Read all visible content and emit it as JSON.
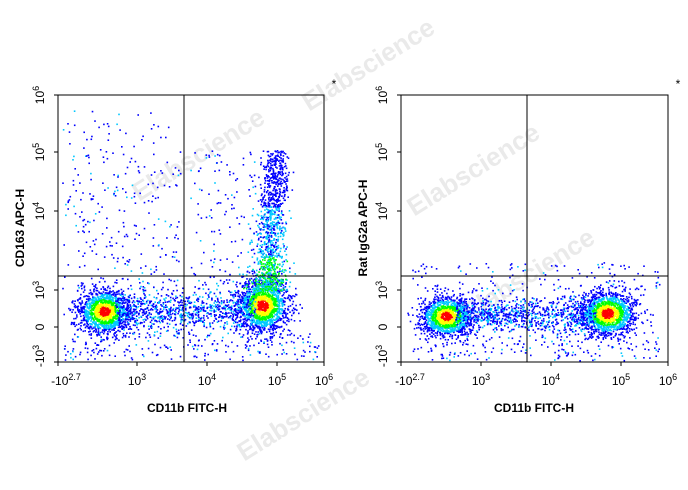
{
  "watermark": "Elabscience",
  "registered_mark": "®",
  "chart_data": [
    {
      "type": "scatter",
      "style": "density-dot-plot (pseudocolor: blue → cyan → green → yellow → red)",
      "xlabel": "CD11b FITC-H",
      "ylabel": "CD163 APC-H",
      "x_scale": "biexponential",
      "y_scale": "biexponential",
      "x_ticks": [
        "-10^2.7",
        "10^3",
        "10^4",
        "10^5",
        "10^6"
      ],
      "y_ticks": [
        "-10^3",
        "0",
        "10^3",
        "10^4",
        "10^5",
        "10^6"
      ],
      "gate_x": 4000,
      "gate_y": 2000,
      "corner_mark": "*",
      "populations": [
        {
          "name": "CD11b- cells",
          "x_center": 400,
          "y_center": 200,
          "density": "high"
        },
        {
          "name": "CD11b+ CD163- cells",
          "x_center": 70000,
          "y_center": 300,
          "density": "high"
        },
        {
          "name": "CD11b+ CD163+ cells",
          "x_center": 90000,
          "y_center": 20000,
          "density": "medium"
        }
      ]
    },
    {
      "type": "scatter",
      "style": "density-dot-plot (pseudocolor: blue → cyan → green → yellow → red)",
      "xlabel": "CD11b FITC-H",
      "ylabel": "Rat IgG2a APC-H",
      "x_scale": "biexponential",
      "y_scale": "biexponential",
      "x_ticks": [
        "-10^2.7",
        "10^3",
        "10^4",
        "10^5",
        "10^6"
      ],
      "y_ticks": [
        "-10^3",
        "0",
        "10^3",
        "10^4",
        "10^5",
        "10^6"
      ],
      "gate_x": 4000,
      "gate_y": 2000,
      "corner_mark": "*",
      "populations": [
        {
          "name": "CD11b- cells",
          "x_center": 400,
          "y_center": 150,
          "density": "high"
        },
        {
          "name": "CD11b+ cells",
          "x_center": 70000,
          "y_center": 150,
          "density": "high"
        }
      ]
    }
  ],
  "colors": {
    "density_low": "#0000ff",
    "density_mid1": "#00c8ff",
    "density_mid2": "#00ff00",
    "density_mid3": "#ffff00",
    "density_high": "#ff0000",
    "axis": "#000000",
    "gate": "#000000"
  }
}
